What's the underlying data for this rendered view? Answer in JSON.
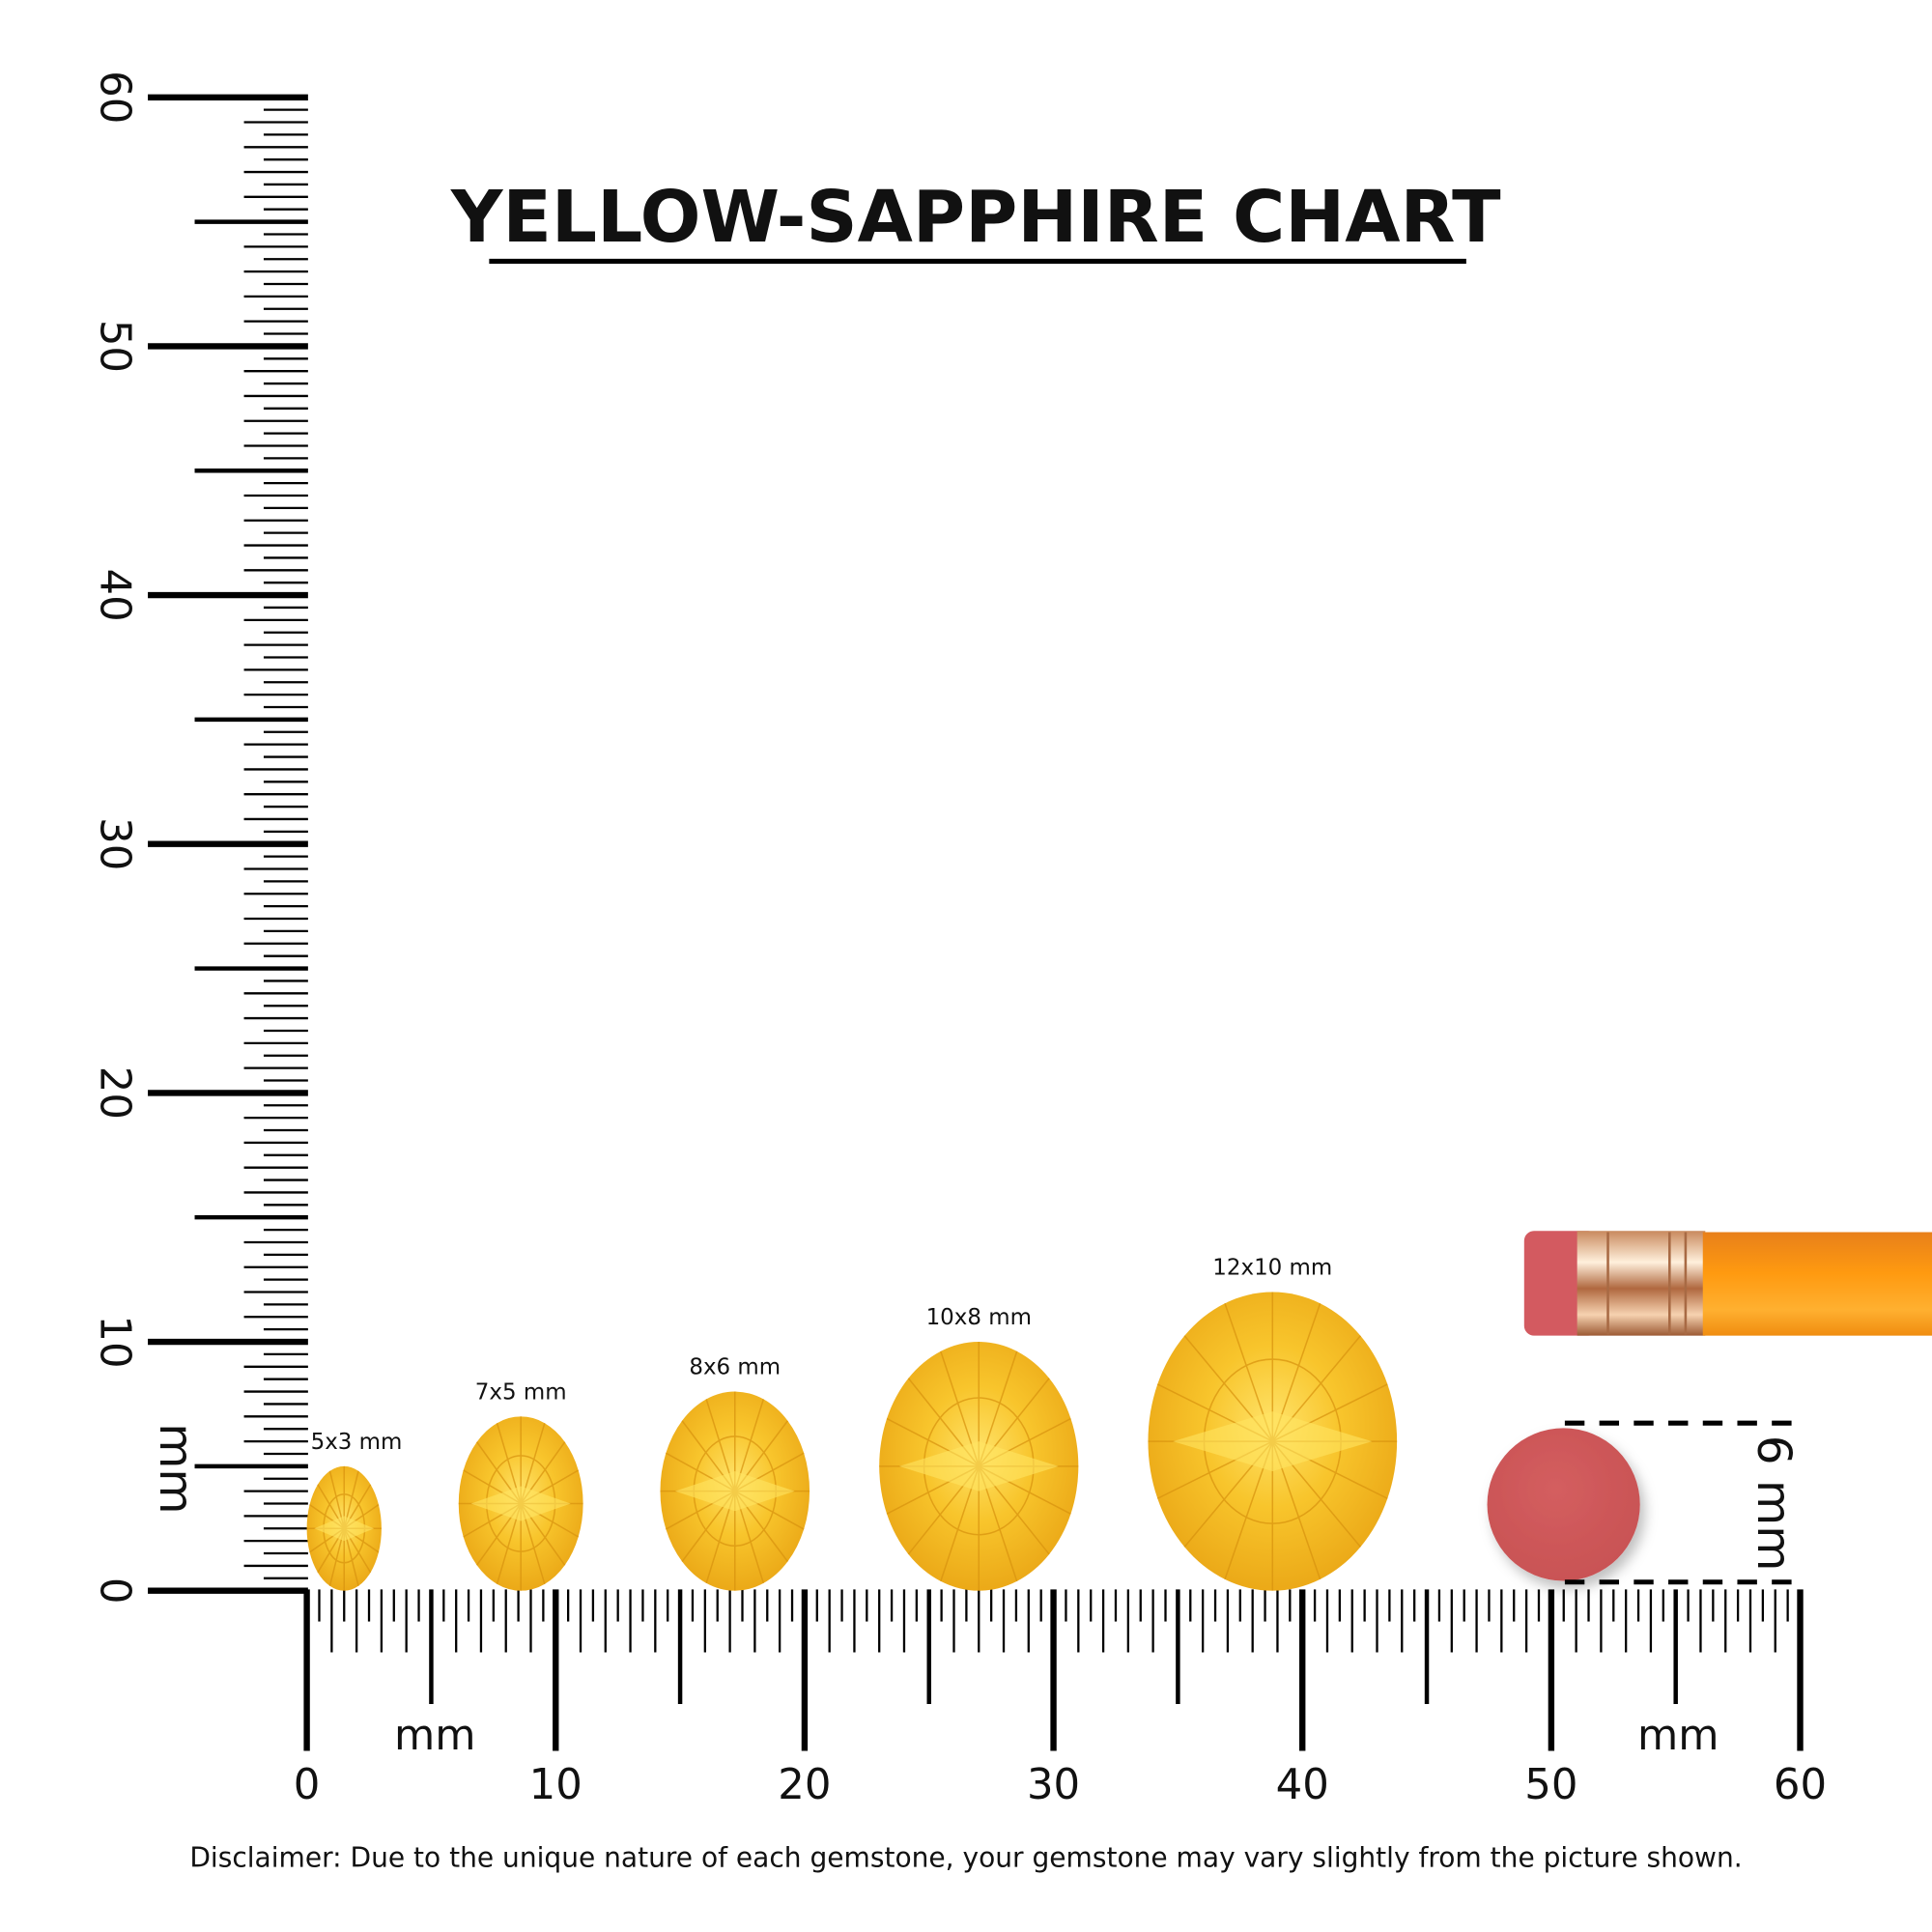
{
  "title": "YELLOW-SAPPHIRE CHART",
  "unit_label": "mm",
  "ruler": {
    "min_mm": 0,
    "max_mm": 60,
    "major_labels": [
      "0",
      "10",
      "20",
      "30",
      "40",
      "50",
      "60"
    ]
  },
  "gems": [
    {
      "label": "5x3 mm",
      "length_mm": 5,
      "width_mm": 3,
      "position_mm": 1.5
    },
    {
      "label": "7x5 mm",
      "length_mm": 7,
      "width_mm": 5,
      "position_mm": 8.6
    },
    {
      "label": "8x6 mm",
      "length_mm": 8,
      "width_mm": 6,
      "position_mm": 17.2
    },
    {
      "label": "10x8 mm",
      "length_mm": 10,
      "width_mm": 8,
      "position_mm": 27
    },
    {
      "label": "12x10 mm",
      "length_mm": 12,
      "width_mm": 10,
      "position_mm": 38.8
    }
  ],
  "reference": {
    "eraser_label": "6 mm",
    "eraser_diameter_mm": 6
  },
  "disclaimer": "Disclaimer: Due to the unique nature of each gemstone, your gemstone may vary slightly from the picture shown.",
  "colors": {
    "gem_light": "#ffd84a",
    "gem_mid": "#f5b81c",
    "gem_dark": "#e09a10",
    "eraser": "#d2585a",
    "pencil": "#f7940f",
    "ferrule": "#e8b48a",
    "ink": "#000000"
  }
}
